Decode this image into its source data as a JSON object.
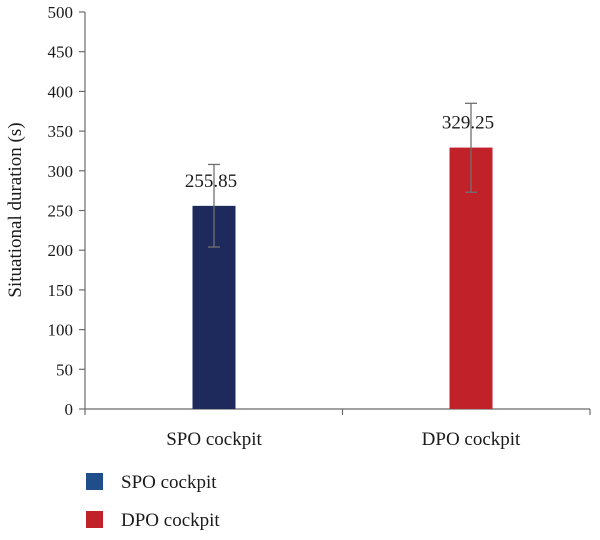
{
  "chart_data": {
    "type": "bar",
    "title": "",
    "xlabel": "",
    "ylabel": "Situational duration (s)",
    "ylim": [
      0,
      500
    ],
    "yticks": [
      0,
      50,
      100,
      150,
      200,
      250,
      300,
      350,
      400,
      450,
      500
    ],
    "grid": false,
    "legend_position": "bottom-left",
    "categories": [
      "SPO cockpit",
      "DPO cockpit"
    ],
    "values": [
      255.85,
      329.25
    ],
    "value_labels": [
      "255.85",
      "329.25"
    ],
    "error_bars": [
      {
        "low": 204,
        "high": 308
      },
      {
        "low": 273,
        "high": 385
      }
    ],
    "colors": [
      "#1f2a5c",
      "#c12129"
    ],
    "legend": [
      {
        "label": "SPO cockpit",
        "color": "#1f4e8a"
      },
      {
        "label": "DPO cockpit",
        "color": "#c12129"
      }
    ]
  }
}
